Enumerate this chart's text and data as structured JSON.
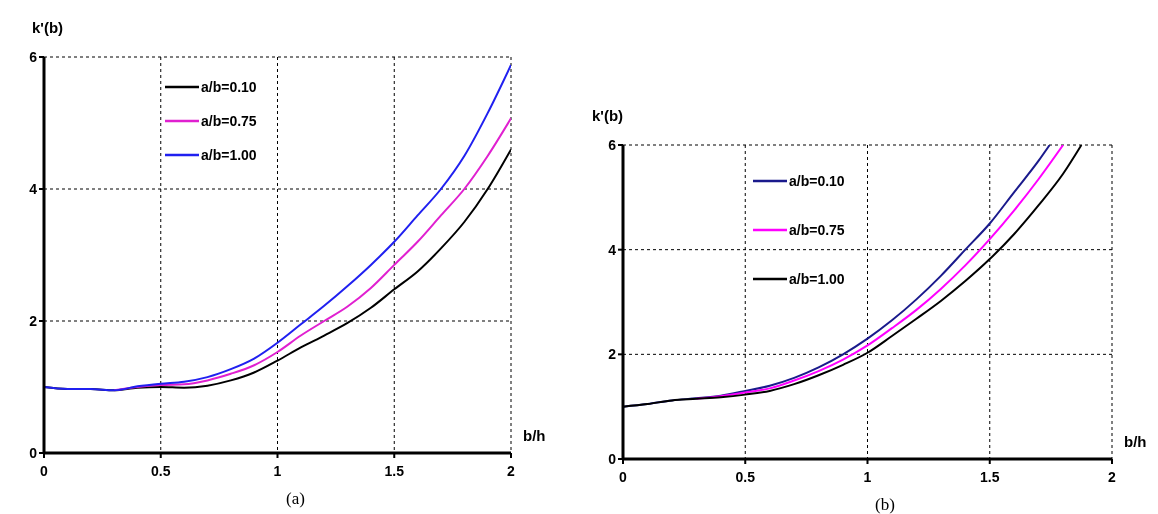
{
  "chart_data": [
    {
      "type": "line",
      "ylabel": "k'(b)",
      "xlabel": "b/h",
      "annotations": [
        "(a)"
      ],
      "xlim": [
        0,
        2
      ],
      "xticks": [
        0,
        0.5,
        1,
        1.5,
        2
      ],
      "ylim": [
        0,
        6
      ],
      "yticks": [
        0,
        2,
        4,
        6
      ],
      "grid": true,
      "legend": "top left",
      "marker": "none",
      "line_style": "solid",
      "x": [
        0,
        0.1,
        0.2,
        0.3,
        0.4,
        0.5,
        0.6,
        0.7,
        0.8,
        0.9,
        1.0,
        1.1,
        1.2,
        1.3,
        1.4,
        1.5,
        1.6,
        1.7,
        1.8,
        1.9,
        2.0
      ],
      "series": [
        {
          "name": "a/b=0.10",
          "color": "#000000",
          "values": [
            1.0,
            0.97,
            0.97,
            0.95,
            0.99,
            1.0,
            0.99,
            1.02,
            1.1,
            1.22,
            1.4,
            1.6,
            1.78,
            1.97,
            2.2,
            2.48,
            2.75,
            3.1,
            3.5,
            4.0,
            4.6
          ]
        },
        {
          "name": "a/b=0.75",
          "color": "#e020d0",
          "values": [
            null,
            null,
            null,
            0.95,
            1.0,
            1.03,
            1.04,
            1.1,
            1.2,
            1.33,
            1.53,
            1.78,
            2.0,
            2.22,
            2.5,
            2.85,
            3.2,
            3.6,
            4.0,
            4.5,
            5.07
          ]
        },
        {
          "name": "a/b=1.00",
          "color": "#2020f0",
          "values": [
            1.0,
            0.97,
            0.97,
            0.95,
            1.01,
            1.05,
            1.08,
            1.15,
            1.27,
            1.43,
            1.67,
            1.95,
            2.23,
            2.53,
            2.85,
            3.2,
            3.6,
            4.0,
            4.5,
            5.15,
            5.88
          ]
        }
      ]
    },
    {
      "type": "line",
      "ylabel": "k'(b)",
      "xlabel": "b/h",
      "annotations": [
        "(b)"
      ],
      "xlim": [
        0,
        2
      ],
      "xticks": [
        0,
        0.5,
        1,
        1.5,
        2
      ],
      "ylim": [
        0,
        6
      ],
      "yticks": [
        0,
        2,
        4,
        6
      ],
      "grid": true,
      "legend": "top left",
      "marker": "none",
      "line_style": "solid",
      "series": [
        {
          "name": "a/b=0.10",
          "color": "#1a1a8c",
          "x": [
            0,
            0.1,
            0.2,
            0.3,
            0.4,
            0.5,
            0.6,
            0.7,
            0.8,
            0.9,
            1.0,
            1.1,
            1.2,
            1.3,
            1.4,
            1.5,
            1.6,
            1.7,
            1.745
          ],
          "values": [
            1.0,
            1.05,
            1.12,
            1.16,
            1.21,
            1.3,
            1.4,
            1.55,
            1.75,
            2.0,
            2.3,
            2.65,
            3.05,
            3.5,
            4.0,
            4.5,
            5.1,
            5.7,
            6.0
          ]
        },
        {
          "name": "a/b=0.75",
          "color": "#ff00ff",
          "x": [
            0.3,
            0.4,
            0.5,
            0.6,
            0.7,
            0.8,
            0.9,
            1.0,
            1.1,
            1.2,
            1.3,
            1.4,
            1.5,
            1.6,
            1.7,
            1.8
          ],
          "values": [
            1.15,
            1.2,
            1.27,
            1.35,
            1.5,
            1.68,
            1.9,
            2.17,
            2.5,
            2.85,
            3.25,
            3.7,
            4.2,
            4.75,
            5.35,
            6.0
          ]
        },
        {
          "name": "a/b=1.00",
          "color": "#000000",
          "x": [
            0,
            0.1,
            0.2,
            0.3,
            0.4,
            0.5,
            0.6,
            0.7,
            0.8,
            0.9,
            1.0,
            1.1,
            1.2,
            1.3,
            1.4,
            1.5,
            1.6,
            1.7,
            1.8,
            1.875
          ],
          "values": [
            1.0,
            1.05,
            1.12,
            1.15,
            1.18,
            1.23,
            1.3,
            1.43,
            1.6,
            1.8,
            2.03,
            2.35,
            2.68,
            3.02,
            3.4,
            3.82,
            4.3,
            4.85,
            5.45,
            6.0
          ]
        }
      ]
    }
  ]
}
